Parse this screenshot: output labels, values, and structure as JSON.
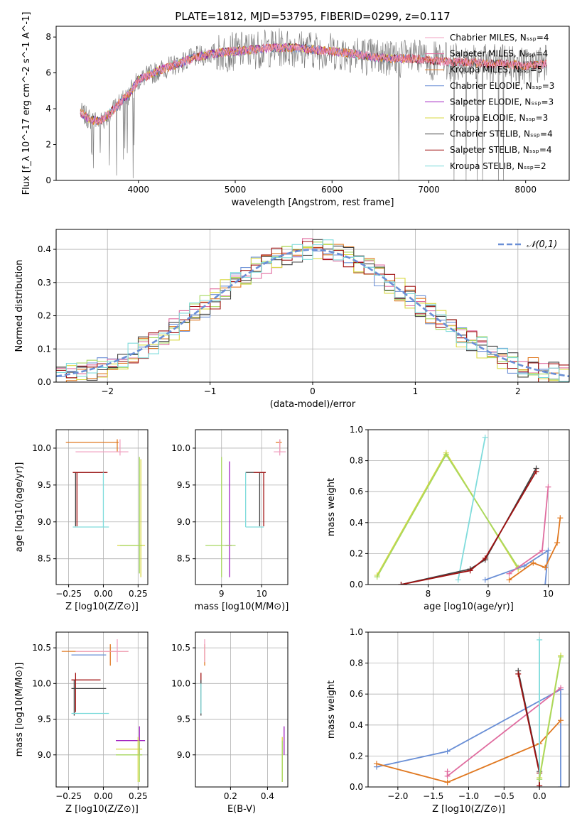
{
  "title": "PLATE=1812, MJD=53795, FIBERID=0299, z=0.117",
  "colors": {
    "chabrier_miles": "#f0a0c0",
    "salpeter_miles": "#e06c9f",
    "kroupa_miles": "#e07820",
    "chabrier_elodie": "#6a8fd6",
    "salpeter_elodie": "#a020c0",
    "kroupa_elodie": "#d8d840",
    "chabrier_stelib": "#444444",
    "salpeter_stelib": "#a01010",
    "kroupa_stelib": "#80dcdc",
    "data": "#808080",
    "lime": "#a8d860"
  },
  "chart_data": [
    {
      "id": "spectrum",
      "type": "line",
      "xlabel": "wavelength [Angstrom, rest frame]",
      "ylabel": "Flux [f_λ 10^-17 erg cm^-2 s^-1 A^-1]",
      "xlim": [
        3150,
        8450
      ],
      "ylim": [
        0,
        8.6
      ],
      "xticks": [
        "4000",
        "5000",
        "6000",
        "7000",
        "8000"
      ],
      "yticks": [
        "0",
        "2",
        "4",
        "6",
        "8"
      ],
      "legend": [
        "Chabrier MILES, N_SSP=4",
        "Salpeter MILES, N_SSP=4",
        "Kroupa MILES, N_SSP=5",
        "Chabrier ELODIE, N_SSP=3",
        "Salpeter ELODIE, N_SSP=3",
        "Kroupa ELODIE, N_SSP=3",
        "Chabrier STELIB, N_SSP=4",
        "Salpeter STELIB, N_SSP=4",
        "Kroupa STELIB, N_SSP=2"
      ],
      "legend_position": "right",
      "continuum": {
        "x": [
          3400,
          3500,
          3600,
          3700,
          3800,
          3900,
          4000,
          4200,
          4400,
          4600,
          4800,
          5000,
          5200,
          5400,
          5600,
          5800,
          6000,
          6200,
          6400,
          6600,
          6800,
          7000,
          7200,
          7400,
          7600,
          7800,
          8000,
          8200
        ],
        "y": [
          3.8,
          3.4,
          3.3,
          3.7,
          4.3,
          4.8,
          5.6,
          6.1,
          6.5,
          6.9,
          7.1,
          7.2,
          7.3,
          7.4,
          7.4,
          7.3,
          7.2,
          7.1,
          6.9,
          6.8,
          6.8,
          6.7,
          6.6,
          6.6,
          6.5,
          6.5,
          6.4,
          6.5
        ]
      }
    },
    {
      "id": "residuals",
      "type": "histogram",
      "xlabel": "(data-model)/error",
      "ylabel": "Normed distribution",
      "xlim": [
        -2.5,
        2.5
      ],
      "ylim": [
        0,
        0.46
      ],
      "xticks": [
        "−2",
        "−1",
        "0",
        "1",
        "2"
      ],
      "yticks": [
        "0.0",
        "0.1",
        "0.2",
        "0.3",
        "0.4"
      ],
      "legend": [
        "𝒩(0,1)"
      ],
      "legend_position": "top-right",
      "grid": true
    },
    {
      "id": "age_vs_Z",
      "type": "errorbar",
      "xlabel": "Z [log10(Z/Z⊙)]",
      "ylabel": "age [log10(age/yr)]",
      "xlim": [
        -0.34,
        0.32
      ],
      "ylim": [
        8.15,
        10.25
      ],
      "xticks": [
        "−0.25",
        "0.00",
        "0.25"
      ],
      "yticks": [
        "8.5",
        "9.0",
        "9.5",
        "10.0"
      ],
      "points": [
        {
          "c": "kroupa_miles",
          "x": [
            -0.27,
            0.11
          ],
          "y": [
            10.08,
            10.08
          ],
          "xc": 0.1,
          "yc": 10.08,
          "ye": [
            9.95,
            10.12
          ]
        },
        {
          "c": "chabrier_miles",
          "x": [
            -0.2,
            0.18
          ],
          "y": [
            9.95,
            9.95
          ],
          "xc": 0.12,
          "yc": 9.95,
          "ye": [
            9.9,
            10.12
          ]
        },
        {
          "c": "chabrier_stelib",
          "x": [
            -0.22,
            0.02
          ],
          "y": [
            9.67,
            9.67
          ],
          "xc": -0.2,
          "yc": 9.67,
          "ye": [
            8.94,
            9.67
          ]
        },
        {
          "c": "salpeter_stelib",
          "x": [
            -0.22,
            0.03
          ],
          "y": [
            9.67,
            9.67
          ],
          "xc": -0.19,
          "yc": 9.67,
          "ye": [
            8.94,
            9.67
          ]
        },
        {
          "c": "kroupa_stelib",
          "x": [
            -0.22,
            0.04
          ],
          "y": [
            8.93,
            8.93
          ],
          "xc": 0.0,
          "yc": 8.93,
          "ye": [
            8.93,
            9.67
          ]
        },
        {
          "c": "kroupa_elodie",
          "x": [
            0.1,
            0.3
          ],
          "y": [
            8.68,
            8.68
          ],
          "xc": 0.27,
          "yc": 8.68,
          "ye": [
            8.25,
            9.85
          ]
        },
        {
          "c": "lime",
          "x": [
            0.12,
            0.28
          ],
          "y": [
            8.68,
            8.68
          ],
          "xc": 0.26,
          "yc": 8.68,
          "ye": [
            8.3,
            9.88
          ]
        }
      ]
    },
    {
      "id": "age_vs_mass",
      "type": "errorbar",
      "xlabel": "mass [log10(M/M⊙)]",
      "ylabel": "",
      "xlim": [
        8.35,
        10.65
      ],
      "ylim": [
        8.15,
        10.25
      ],
      "xticks": [
        "9",
        "10"
      ],
      "yticks": [
        "8.5",
        "9.0",
        "9.5",
        "10.0"
      ],
      "points": [
        {
          "c": "kroupa_miles",
          "x": [
            10.35,
            10.5
          ],
          "y": [
            10.08,
            10.08
          ],
          "xc": 10.45,
          "yc": 10.08,
          "ye": [
            9.95,
            10.12
          ]
        },
        {
          "c": "chabrier_miles",
          "x": [
            10.3,
            10.6
          ],
          "y": [
            9.95,
            9.95
          ],
          "xc": 10.45,
          "yc": 9.95,
          "ye": [
            9.9,
            10.12
          ]
        },
        {
          "c": "chabrier_stelib",
          "x": [
            9.6,
            10.1
          ],
          "y": [
            9.67,
            9.67
          ],
          "xc": 9.95,
          "yc": 9.67,
          "ye": [
            8.94,
            9.67
          ]
        },
        {
          "c": "salpeter_stelib",
          "x": [
            9.8,
            10.1
          ],
          "y": [
            9.67,
            9.67
          ],
          "xc": 10.05,
          "yc": 9.67,
          "ye": [
            8.94,
            9.67
          ]
        },
        {
          "c": "kroupa_stelib",
          "x": [
            9.6,
            10.05
          ],
          "y": [
            8.93,
            8.93
          ],
          "xc": 9.6,
          "yc": 8.93,
          "ye": [
            8.93,
            9.67
          ]
        },
        {
          "c": "salpeter_elodie",
          "x": [
            9.1,
            9.25
          ],
          "y": [
            8.68,
            8.68
          ],
          "xc": 9.2,
          "yc": 8.68,
          "ye": [
            8.25,
            9.82
          ]
        },
        {
          "c": "lime",
          "x": [
            8.6,
            9.35
          ],
          "y": [
            8.68,
            8.68
          ],
          "xc": 9.0,
          "yc": 8.68,
          "ye": [
            8.25,
            9.88
          ]
        }
      ]
    },
    {
      "id": "weight_vs_age",
      "type": "line",
      "xlabel": "age [log10(age/yr)]",
      "ylabel": "mass weight",
      "xlim": [
        7.0,
        10.35
      ],
      "ylim": [
        0,
        1.0
      ],
      "xticks": [
        "8",
        "9",
        "10"
      ],
      "yticks": [
        "0.0",
        "0.2",
        "0.4",
        "0.6",
        "0.8",
        "1.0"
      ],
      "series": [
        {
          "c": "kroupa_elodie",
          "x": [
            7.15,
            8.3,
            9.5
          ],
          "y": [
            0.06,
            0.85,
            0.1
          ]
        },
        {
          "c": "lime",
          "x": [
            7.15,
            8.3,
            9.5
          ],
          "y": [
            0.05,
            0.84,
            0.11
          ]
        },
        {
          "c": "kroupa_stelib",
          "x": [
            8.5,
            8.95
          ],
          "y": [
            0.03,
            0.95
          ]
        },
        {
          "c": "chabrier_stelib",
          "x": [
            7.55,
            8.7,
            8.95,
            9.8
          ],
          "y": [
            0.0,
            0.1,
            0.16,
            0.75
          ]
        },
        {
          "c": "salpeter_stelib",
          "x": [
            7.55,
            8.7,
            8.95,
            9.8
          ],
          "y": [
            0.0,
            0.09,
            0.17,
            0.73
          ]
        },
        {
          "c": "chabrier_elodie",
          "x": [
            8.95,
            9.6,
            10.0,
            9.95
          ],
          "y": [
            0.03,
            0.12,
            0.22,
            0.0
          ]
        },
        {
          "c": "salpeter_miles",
          "x": [
            9.35,
            9.9,
            10.0
          ],
          "y": [
            0.07,
            0.22,
            0.63
          ]
        },
        {
          "c": "kroupa_miles",
          "x": [
            9.35,
            9.75,
            9.95,
            10.15,
            10.2
          ],
          "y": [
            0.03,
            0.14,
            0.11,
            0.27,
            0.43
          ]
        }
      ]
    },
    {
      "id": "mass_vs_Z",
      "type": "errorbar",
      "xlabel": "Z [log10(Z/Z⊙)]",
      "ylabel": "mass [log10(M/M⊙)]",
      "xlim": [
        -0.34,
        0.32
      ],
      "ylim": [
        8.55,
        10.72
      ],
      "xticks": [
        "−0.25",
        "0.00",
        "0.25"
      ],
      "yticks": [
        "9.0",
        "9.5",
        "10.0",
        "10.5"
      ],
      "points": [
        {
          "c": "kroupa_miles",
          "x": [
            -0.3,
            0.18
          ],
          "y": [
            10.45,
            10.45
          ],
          "xc": 0.05,
          "yc": 10.45,
          "ye": [
            10.25,
            10.55
          ]
        },
        {
          "c": "chabrier_miles",
          "x": [
            -0.2,
            0.18
          ],
          "y": [
            10.45,
            10.45
          ],
          "xc": 0.1,
          "yc": 10.45,
          "ye": [
            10.3,
            10.62
          ]
        },
        {
          "c": "chabrier_elodie",
          "x": [
            -0.23,
            0.02
          ],
          "y": [
            10.4,
            10.4
          ],
          "xc": 0.02,
          "yc": 10.4,
          "ye": [
            10.4,
            10.4
          ]
        },
        {
          "c": "salpeter_stelib",
          "x": [
            -0.23,
            -0.02
          ],
          "y": [
            10.05,
            10.05
          ],
          "xc": -0.2,
          "yc": 10.05,
          "ye": [
            9.6,
            10.15
          ]
        },
        {
          "c": "chabrier_stelib",
          "x": [
            -0.23,
            0.02
          ],
          "y": [
            9.93,
            9.93
          ],
          "xc": -0.21,
          "yc": 9.93,
          "ye": [
            9.55,
            10.05
          ]
        },
        {
          "c": "kroupa_stelib",
          "x": [
            -0.23,
            0.04
          ],
          "y": [
            9.58,
            9.58
          ],
          "xc": 0.0,
          "yc": 9.58,
          "ye": [
            9.58,
            9.58
          ]
        },
        {
          "c": "salpeter_elodie",
          "x": [
            0.09,
            0.3
          ],
          "y": [
            9.2,
            9.2
          ],
          "xc": 0.26,
          "yc": 9.2,
          "ye": [
            9.0,
            9.4
          ]
        },
        {
          "c": "kroupa_elodie",
          "x": [
            0.09,
            0.28
          ],
          "y": [
            9.08,
            9.08
          ],
          "xc": 0.25,
          "yc": 9.08,
          "ye": [
            8.62,
            9.25
          ]
        },
        {
          "c": "lime",
          "x": [
            0.09,
            0.28
          ],
          "y": [
            9.0,
            9.0
          ],
          "xc": 0.26,
          "yc": 9.0,
          "ye": [
            8.62,
            9.2
          ]
        }
      ]
    },
    {
      "id": "mass_vs_ebv",
      "type": "errorbar",
      "xlabel": "E(B-V)",
      "ylabel": "",
      "xlim": [
        0.01,
        0.51
      ],
      "ylim": [
        8.55,
        10.72
      ],
      "xticks": [
        "0.2",
        "0.4"
      ],
      "yticks": [
        "9.0",
        "9.5",
        "10.0",
        "10.5"
      ],
      "points": [
        {
          "c": "kroupa_miles",
          "x": [
            0.06,
            0.06
          ],
          "y": [
            10.45,
            10.45
          ],
          "xc": 0.06,
          "yc": 10.45,
          "ye": [
            10.25,
            10.55
          ]
        },
        {
          "c": "chabrier_miles",
          "x": [
            0.06,
            0.06
          ],
          "y": [
            10.45,
            10.45
          ],
          "xc": 0.06,
          "yc": 10.45,
          "ye": [
            10.3,
            10.62
          ]
        },
        {
          "c": "salpeter_stelib",
          "x": [
            0.04,
            0.04
          ],
          "y": [
            10.05,
            10.05
          ],
          "xc": 0.04,
          "yc": 10.05,
          "ye": [
            9.6,
            10.15
          ]
        },
        {
          "c": "chabrier_stelib",
          "x": [
            0.04,
            0.04
          ],
          "y": [
            9.93,
            9.93
          ],
          "xc": 0.04,
          "yc": 9.93,
          "ye": [
            9.55,
            10.05
          ]
        },
        {
          "c": "kroupa_stelib",
          "x": [
            0.04,
            0.04
          ],
          "y": [
            9.58,
            9.58
          ],
          "xc": 0.04,
          "yc": 9.58,
          "ye": [
            9.58,
            10.0
          ]
        },
        {
          "c": "salpeter_elodie",
          "x": [
            0.49,
            0.49
          ],
          "y": [
            9.2,
            9.2
          ],
          "xc": 0.49,
          "yc": 9.2,
          "ye": [
            9.0,
            9.4
          ]
        },
        {
          "c": "kroupa_elodie",
          "x": [
            0.48,
            0.48
          ],
          "y": [
            9.08,
            9.08
          ],
          "xc": 0.48,
          "yc": 9.08,
          "ye": [
            8.62,
            9.25
          ]
        },
        {
          "c": "lime",
          "x": [
            0.48,
            0.48
          ],
          "y": [
            9.0,
            9.0
          ],
          "xc": 0.48,
          "yc": 9.0,
          "ye": [
            8.62,
            9.2
          ]
        }
      ]
    },
    {
      "id": "weight_vs_Z",
      "type": "line",
      "xlabel": "Z [log10(Z/Z⊙)]",
      "ylabel": "mass weight",
      "xlim": [
        -2.42,
        0.42
      ],
      "ylim": [
        0,
        1.0
      ],
      "xticks": [
        "−2.0",
        "−1.5",
        "−1.0",
        "−0.5",
        "0.0"
      ],
      "yticks": [
        "0.0",
        "0.2",
        "0.4",
        "0.6",
        "0.8",
        "1.0"
      ],
      "series": [
        {
          "c": "chabrier_elodie",
          "x": [
            -2.3,
            -1.3,
            0.3,
            0.3
          ],
          "y": [
            0.13,
            0.23,
            0.63,
            0.0
          ]
        },
        {
          "c": "kroupa_miles",
          "x": [
            -2.3,
            -1.3,
            0.0,
            0.3
          ],
          "y": [
            0.15,
            0.03,
            0.28,
            0.43
          ]
        },
        {
          "c": "salpeter_miles",
          "x": [
            -1.3,
            -1.3,
            0.3
          ],
          "y": [
            0.1,
            0.07,
            0.64
          ]
        },
        {
          "c": "chabrier_stelib",
          "x": [
            -0.3,
            0.0,
            0.0
          ],
          "y": [
            0.75,
            0.1,
            0.0
          ]
        },
        {
          "c": "salpeter_stelib",
          "x": [
            -0.3,
            0.0,
            0.0
          ],
          "y": [
            0.73,
            0.09,
            0.01
          ]
        },
        {
          "c": "kroupa_stelib",
          "x": [
            0.0,
            0.0
          ],
          "y": [
            0.05,
            0.95
          ]
        },
        {
          "c": "kroupa_elodie",
          "x": [
            0.0,
            0.3
          ],
          "y": [
            0.06,
            0.85
          ]
        },
        {
          "c": "lime",
          "x": [
            0.0,
            0.3
          ],
          "y": [
            0.05,
            0.84
          ]
        }
      ]
    }
  ]
}
